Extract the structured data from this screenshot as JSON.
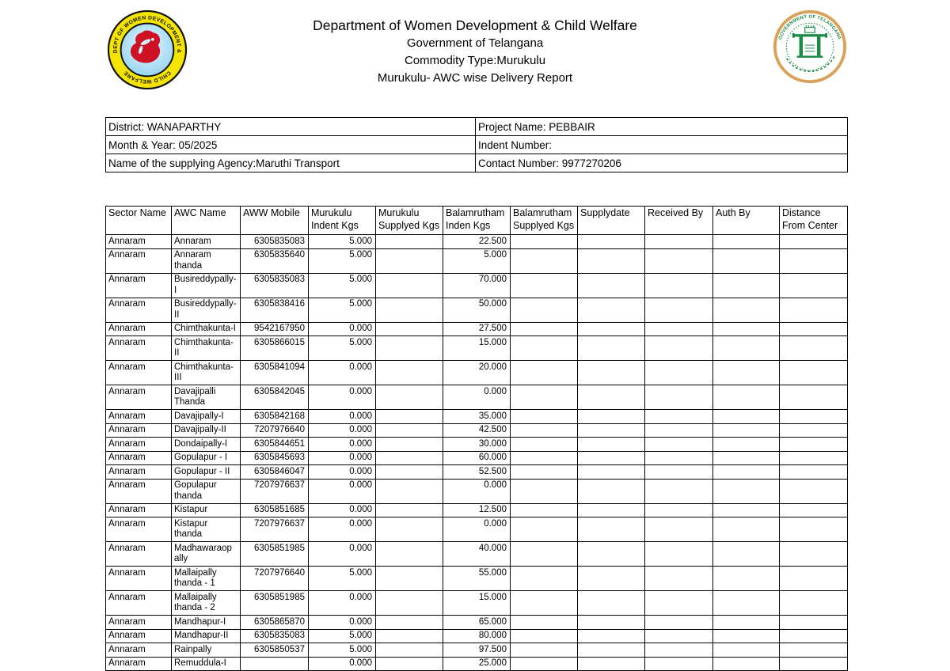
{
  "page": {
    "title_lines": [
      "Department of Women Development & Child Welfare",
      "Government of Telangana",
      "Commodity Type:Murukulu",
      "Murukulu- AWC wise Delivery Report"
    ]
  },
  "logos": {
    "dept_ring_top": "DEPT OF WOMEN DEVELOPMENT &",
    "dept_ring_bottom": "CHILD WELFARE",
    "govt_ring_text": "GOVERNMENT OF TELANGANA",
    "colors": {
      "dept_ring_yellow": "#f5e400",
      "dept_inner_blue": "#9fd9f2",
      "dept_figure_red": "#cf1126",
      "govt_green": "#1b8a45",
      "govt_ring_tan": "#d9a258"
    }
  },
  "info": {
    "district": "District: WANAPARTHY",
    "project": "Project Name: PEBBAIR",
    "month_year": "Month & Year: 05/2025",
    "indent_number": "Indent Number:",
    "agency": "Name of the supplying Agency:Maruthi Transport",
    "contact": "Contact Number: 9977270206"
  },
  "table": {
    "headers": [
      "Sector Name",
      "AWC Name",
      "AWW Mobile",
      "Murukulu Indent Kgs",
      "Murukulu Supplyed Kgs",
      "Balamrutham Inden Kgs",
      "Balamrutham Supplyed Kgs",
      "Supplydate",
      "Received By",
      "Auth By",
      "Distance From Center"
    ],
    "rows": [
      [
        "Annaram",
        "Annaram",
        "6305835083",
        "5.000",
        "",
        "22.500",
        "",
        "",
        "",
        "",
        ""
      ],
      [
        "Annaram",
        "Annaram thanda",
        "6305835640",
        "5.000",
        "",
        "5.000",
        "",
        "",
        "",
        "",
        ""
      ],
      [
        "Annaram",
        "Busireddypally-I",
        "6305835083",
        "5.000",
        "",
        "70.000",
        "",
        "",
        "",
        "",
        ""
      ],
      [
        "Annaram",
        "Busireddypally-II",
        "6305838416",
        "5.000",
        "",
        "50.000",
        "",
        "",
        "",
        "",
        ""
      ],
      [
        "Annaram",
        "Chimthakunta-I",
        "9542167950",
        "0.000",
        "",
        "27.500",
        "",
        "",
        "",
        "",
        ""
      ],
      [
        "Annaram",
        "Chimthakunta-II",
        "6305866015",
        "5.000",
        "",
        "15.000",
        "",
        "",
        "",
        "",
        ""
      ],
      [
        "Annaram",
        "Chimthakunta-III",
        "6305841094",
        "0.000",
        "",
        "20.000",
        "",
        "",
        "",
        "",
        ""
      ],
      [
        "Annaram",
        "Davajipalli Thanda",
        "6305842045",
        "0.000",
        "",
        "0.000",
        "",
        "",
        "",
        "",
        ""
      ],
      [
        "Annaram",
        "Davajipally-I",
        "6305842168",
        "0.000",
        "",
        "35.000",
        "",
        "",
        "",
        "",
        ""
      ],
      [
        "Annaram",
        "Davajipally-II",
        "7207976640",
        "0.000",
        "",
        "42.500",
        "",
        "",
        "",
        "",
        ""
      ],
      [
        "Annaram",
        "Dondaipally-I",
        "6305844651",
        "0.000",
        "",
        "30.000",
        "",
        "",
        "",
        "",
        ""
      ],
      [
        "Annaram",
        "Gopulapur - I",
        "6305845693",
        "0.000",
        "",
        "60.000",
        "",
        "",
        "",
        "",
        ""
      ],
      [
        "Annaram",
        "Gopulapur - II",
        "6305846047",
        "0.000",
        "",
        "52.500",
        "",
        "",
        "",
        "",
        ""
      ],
      [
        "Annaram",
        "Gopulapur thanda",
        "7207976637",
        "0.000",
        "",
        "0.000",
        "",
        "",
        "",
        "",
        ""
      ],
      [
        "Annaram",
        "Kistapur",
        "6305851685",
        "0.000",
        "",
        "12.500",
        "",
        "",
        "",
        "",
        ""
      ],
      [
        "Annaram",
        "Kistapur thanda",
        "7207976637",
        "0.000",
        "",
        "0.000",
        "",
        "",
        "",
        "",
        ""
      ],
      [
        "Annaram",
        "Madhawaraopally",
        "6305851985",
        "0.000",
        "",
        "40.000",
        "",
        "",
        "",
        "",
        ""
      ],
      [
        "Annaram",
        "Mallaipally thanda - 1",
        "7207976640",
        "5.000",
        "",
        "55.000",
        "",
        "",
        "",
        "",
        ""
      ],
      [
        "Annaram",
        "Mallaipally thanda - 2",
        "6305851985",
        "0.000",
        "",
        "15.000",
        "",
        "",
        "",
        "",
        ""
      ],
      [
        "Annaram",
        "Mandhapur-I",
        "6305865870",
        "0.000",
        "",
        "65.000",
        "",
        "",
        "",
        "",
        ""
      ],
      [
        "Annaram",
        "Mandhapur-II",
        "6305835083",
        "5.000",
        "",
        "80.000",
        "",
        "",
        "",
        "",
        ""
      ],
      [
        "Annaram",
        "Rainpally",
        "6305850537",
        "5.000",
        "",
        "97.500",
        "",
        "",
        "",
        "",
        ""
      ],
      [
        "Annaram",
        "Remuddula-I",
        "",
        "0.000",
        "",
        "25.000",
        "",
        "",
        "",
        "",
        ""
      ]
    ]
  }
}
